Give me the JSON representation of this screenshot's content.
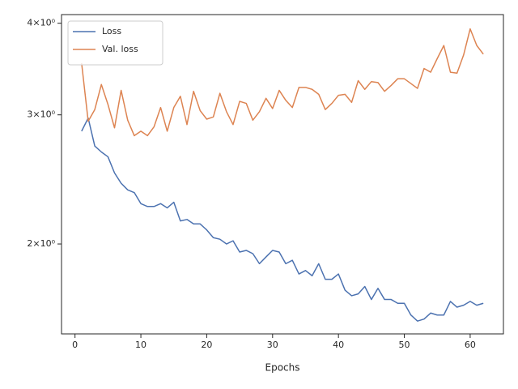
{
  "chart_data": {
    "type": "line",
    "xlabel": "Epochs",
    "yscale": "log",
    "legend": "upper left",
    "x": [
      1,
      2,
      3,
      4,
      5,
      6,
      7,
      8,
      9,
      10,
      11,
      12,
      13,
      14,
      15,
      16,
      17,
      18,
      19,
      20,
      21,
      22,
      23,
      24,
      25,
      26,
      27,
      28,
      29,
      30,
      31,
      32,
      33,
      34,
      35,
      36,
      37,
      38,
      39,
      40,
      41,
      42,
      43,
      44,
      45,
      46,
      47,
      48,
      49,
      50,
      51,
      52,
      53,
      54,
      55,
      56,
      57,
      58,
      59,
      60,
      61,
      62
    ],
    "xlim": [
      -2.05,
      65.05
    ],
    "xticks": [
      0,
      10,
      20,
      30,
      40,
      50,
      60
    ],
    "ylim": [
      1.508,
      4.11
    ],
    "yticks": [
      {
        "value": 2,
        "label": "2×10⁰"
      },
      {
        "value": 3,
        "label": "3×10⁰"
      },
      {
        "value": 4,
        "label": "4×10⁰"
      }
    ],
    "series": [
      {
        "name": "Loss",
        "color": "#4c72b0",
        "values": [
          2.85,
          2.97,
          2.72,
          2.67,
          2.63,
          2.5,
          2.42,
          2.37,
          2.35,
          2.27,
          2.25,
          2.25,
          2.27,
          2.24,
          2.28,
          2.15,
          2.16,
          2.13,
          2.13,
          2.09,
          2.04,
          2.03,
          2.0,
          2.02,
          1.95,
          1.96,
          1.94,
          1.88,
          1.92,
          1.96,
          1.95,
          1.88,
          1.9,
          1.82,
          1.84,
          1.81,
          1.88,
          1.79,
          1.79,
          1.82,
          1.73,
          1.7,
          1.71,
          1.75,
          1.68,
          1.74,
          1.68,
          1.68,
          1.66,
          1.66,
          1.6,
          1.57,
          1.58,
          1.61,
          1.6,
          1.6,
          1.67,
          1.64,
          1.65,
          1.67,
          1.65,
          1.66
        ]
      },
      {
        "name": "Val. loss",
        "color": "#dd8452",
        "values": [
          3.53,
          2.94,
          3.05,
          3.3,
          3.1,
          2.88,
          3.24,
          2.95,
          2.81,
          2.85,
          2.81,
          2.89,
          3.07,
          2.85,
          3.07,
          3.18,
          2.91,
          3.23,
          3.04,
          2.96,
          2.98,
          3.21,
          3.03,
          2.91,
          3.13,
          3.11,
          2.95,
          3.03,
          3.16,
          3.06,
          3.24,
          3.14,
          3.07,
          3.27,
          3.27,
          3.25,
          3.2,
          3.05,
          3.11,
          3.19,
          3.2,
          3.12,
          3.34,
          3.25,
          3.33,
          3.32,
          3.23,
          3.29,
          3.36,
          3.36,
          3.31,
          3.26,
          3.47,
          3.43,
          3.58,
          3.73,
          3.43,
          3.42,
          3.62,
          3.93,
          3.73,
          3.63
        ]
      }
    ]
  }
}
